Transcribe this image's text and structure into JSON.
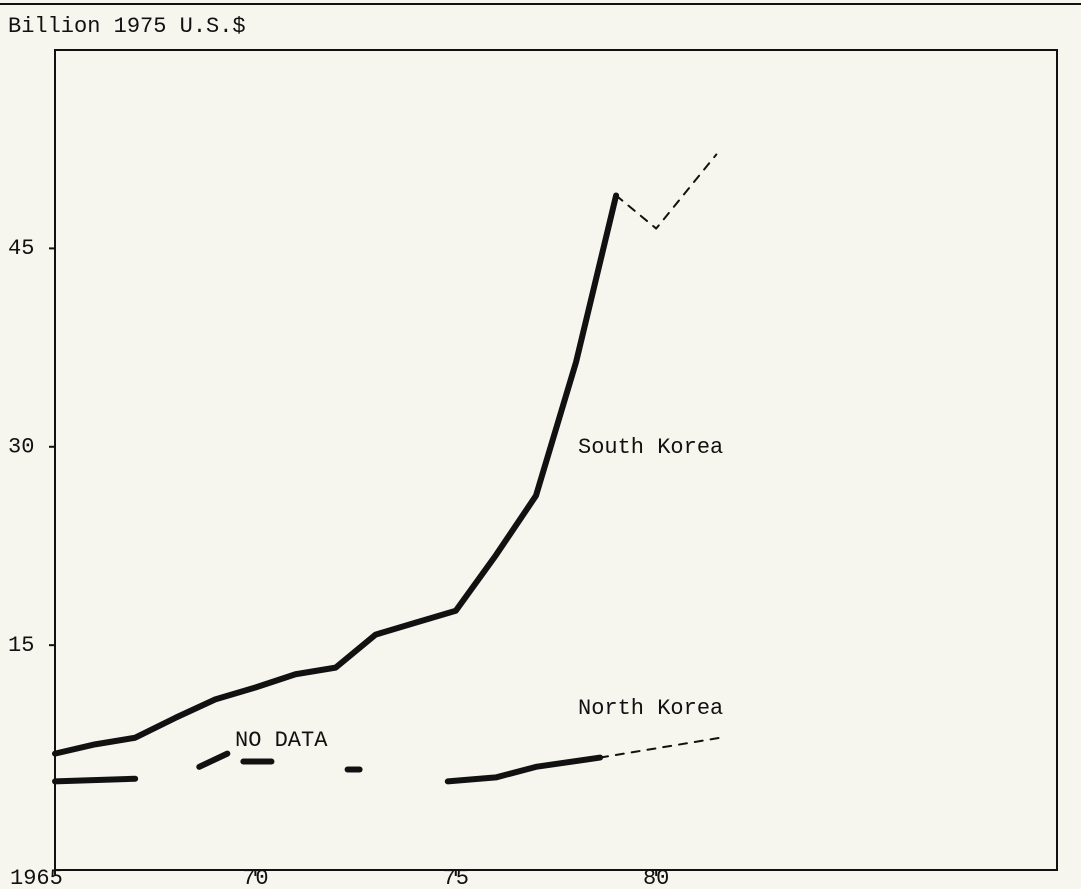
{
  "chart_data": {
    "type": "line",
    "y_label": "Billion 1975 U.S.$",
    "xlim": [
      1965,
      1990
    ],
    "ylim": [
      -2,
      60
    ],
    "xticks": [
      1965,
      {
        "value": 1970,
        "label": "70"
      },
      {
        "value": 1975,
        "label": "75"
      },
      {
        "value": 1980,
        "label": "80"
      }
    ],
    "yticks": [
      15,
      30,
      45
    ],
    "grid": false,
    "annotations": [
      "NO DATA"
    ],
    "series": [
      {
        "name": "South Korea",
        "color": "#111111",
        "projected_from": 1979,
        "x": [
          1965,
          1966,
          1967,
          1968,
          1969,
          1970,
          1971,
          1972,
          1973,
          1974,
          1975,
          1976,
          1977,
          1978,
          1979,
          1980,
          1981.5
        ],
        "values": [
          6.8,
          7.5,
          8.0,
          9.5,
          10.9,
          11.8,
          12.8,
          13.3,
          15.8,
          16.7,
          17.6,
          21.8,
          26.3,
          36.4,
          49.0,
          46.5,
          52.1
        ]
      },
      {
        "name": "North Korea",
        "color": "#111111",
        "projected_from": 1978.6,
        "x": [
          1965,
          1967,
          null,
          1968.6,
          1969.3,
          null,
          1969.7,
          1970.4,
          null,
          1972.3,
          1972.6,
          null,
          1974.8,
          1976,
          1977,
          1978.6,
          1981.6
        ],
        "values": [
          4.7,
          4.9,
          null,
          5.8,
          6.8,
          null,
          6.2,
          6.2,
          null,
          5.6,
          5.6,
          null,
          4.7,
          5.0,
          5.8,
          6.5,
          8.0
        ]
      }
    ]
  }
}
